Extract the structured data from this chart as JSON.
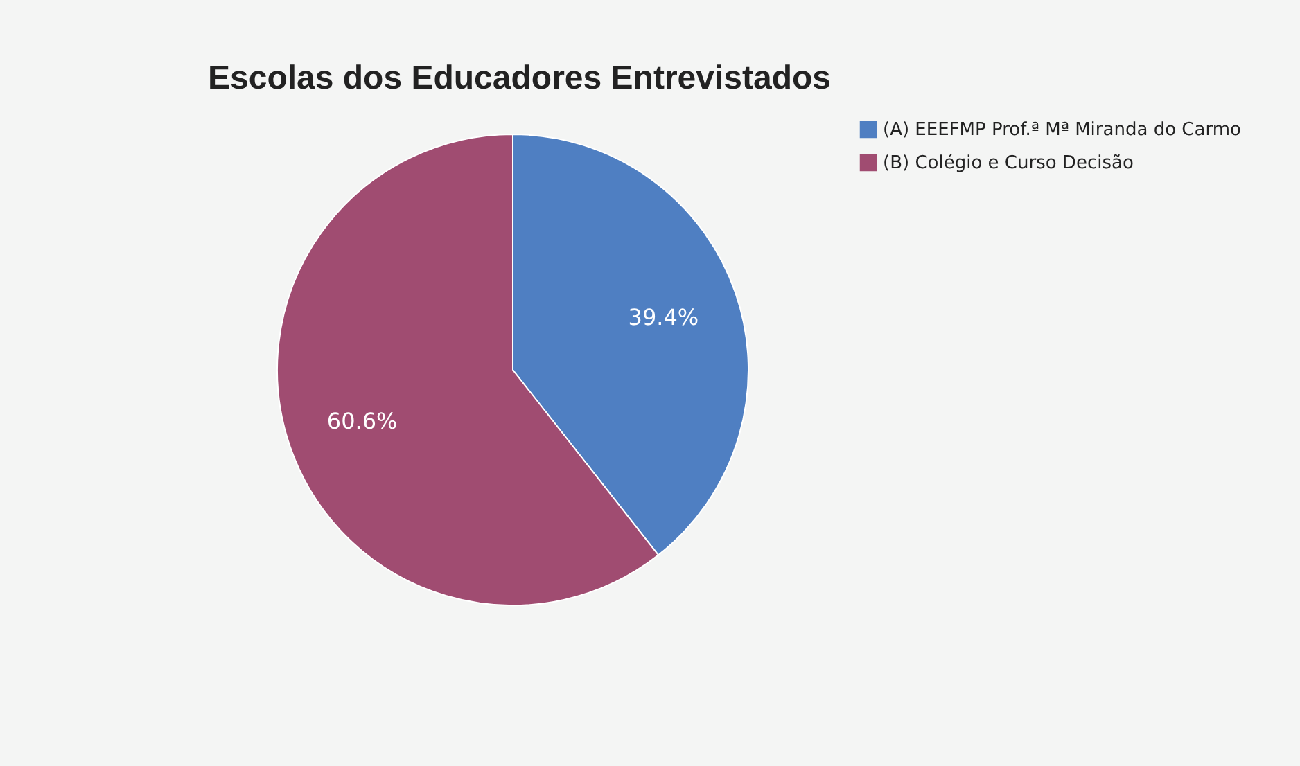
{
  "chart_data": {
    "type": "pie",
    "title": "Escolas dos Educadores Entrevistados",
    "categories": [
      "(A) EEEFMP Prof.ª Mª Miranda do Carmo",
      "(B) Colégio e Curso Decisão"
    ],
    "values": [
      39.4,
      60.6
    ],
    "colors": [
      "#4f7fc2",
      "#a04c71"
    ],
    "value_labels": [
      "39.4%",
      "60.6%"
    ],
    "legend": "top right"
  }
}
